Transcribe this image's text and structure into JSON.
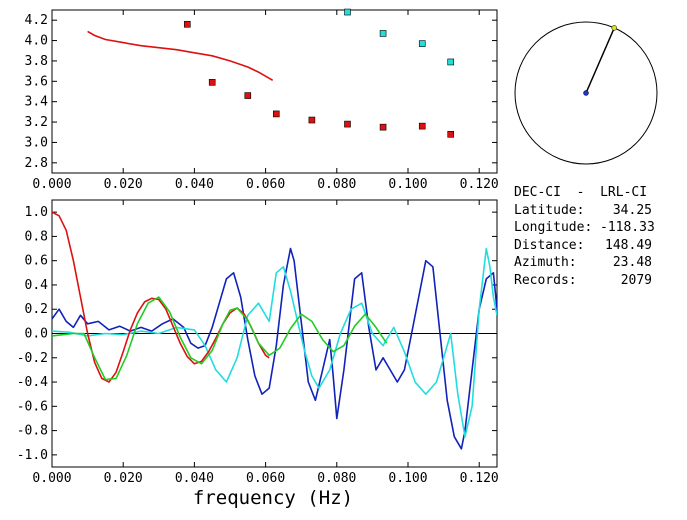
{
  "station": {
    "title": "DEC-CI  -  LRL-CI",
    "rows": [
      {
        "key": "Latitude:",
        "value": "34.25"
      },
      {
        "key": "Longitude:",
        "value": "-118.33"
      },
      {
        "key": "Distance:",
        "value": "148.49"
      },
      {
        "key": "Azimuth:",
        "value": "23.48"
      },
      {
        "key": "Records:",
        "value": "2079"
      }
    ],
    "azimuth_deg": 23.48
  },
  "colors": {
    "red": "#dd1111",
    "cyan": "#22dddd",
    "blue": "#1122bb",
    "green": "#22cc22",
    "axis": "#000000"
  },
  "chart_data": [
    {
      "type": "scatter",
      "xlim": [
        0.0,
        0.125
      ],
      "ylim": [
        2.7,
        4.3
      ],
      "xticks": [
        "0.000",
        "0.020",
        "0.040",
        "0.060",
        "0.080",
        "0.100",
        "0.120"
      ],
      "yticks": [
        "2.8",
        "3.0",
        "3.2",
        "3.4",
        "3.6",
        "3.8",
        "4.0",
        "4.2"
      ],
      "series": [
        {
          "color": "red",
          "kind": "line",
          "x": [
            0.01,
            0.012,
            0.015,
            0.02,
            0.025,
            0.03,
            0.035,
            0.04,
            0.045,
            0.05,
            0.055,
            0.058,
            0.06,
            0.062
          ],
          "y": [
            4.09,
            4.05,
            4.01,
            3.98,
            3.95,
            3.93,
            3.91,
            3.88,
            3.85,
            3.8,
            3.74,
            3.69,
            3.65,
            3.61
          ]
        },
        {
          "color": "red",
          "kind": "points",
          "x": [
            0.038,
            0.045,
            0.055,
            0.063,
            0.073,
            0.083,
            0.093,
            0.104,
            0.112
          ],
          "y": [
            4.16,
            3.59,
            3.46,
            3.28,
            3.22,
            3.18,
            3.15,
            3.16,
            3.08
          ]
        },
        {
          "color": "cyan",
          "kind": "points",
          "x": [
            0.083,
            0.093,
            0.104,
            0.112
          ],
          "y": [
            4.28,
            4.07,
            3.97,
            3.79
          ]
        }
      ]
    },
    {
      "type": "line",
      "xlim": [
        0.0,
        0.125
      ],
      "ylim": [
        -1.1,
        1.1
      ],
      "xlabel": "frequency (Hz)",
      "xticks": [
        "0.000",
        "0.020",
        "0.040",
        "0.060",
        "0.080",
        "0.100",
        "0.120"
      ],
      "yticks": [
        "1.0",
        "0.8",
        "0.6",
        "0.4",
        "0.2",
        "0.0",
        "-0.2",
        "-0.4",
        "-0.6",
        "-0.8",
        "-1.0"
      ],
      "series": [
        {
          "color": "blue",
          "x": [
            0.0,
            0.002,
            0.004,
            0.006,
            0.008,
            0.01,
            0.013,
            0.016,
            0.019,
            0.022,
            0.025,
            0.028,
            0.031,
            0.034,
            0.037,
            0.039,
            0.041,
            0.043,
            0.045,
            0.047,
            0.049,
            0.051,
            0.053,
            0.055,
            0.057,
            0.059,
            0.061,
            0.063,
            0.065,
            0.067,
            0.068,
            0.07,
            0.072,
            0.074,
            0.076,
            0.078,
            0.079,
            0.08,
            0.082,
            0.084,
            0.085,
            0.087,
            0.089,
            0.091,
            0.093,
            0.095,
            0.097,
            0.099,
            0.101,
            0.103,
            0.105,
            0.107,
            0.109,
            0.111,
            0.113,
            0.115,
            0.116,
            0.118,
            0.12,
            0.122,
            0.124,
            0.125
          ],
          "y": [
            0.12,
            0.2,
            0.1,
            0.05,
            0.15,
            0.08,
            0.1,
            0.03,
            0.06,
            0.02,
            0.05,
            0.02,
            0.08,
            0.12,
            0.05,
            -0.08,
            -0.12,
            -0.1,
            0.05,
            0.25,
            0.45,
            0.5,
            0.3,
            -0.05,
            -0.35,
            -0.5,
            -0.45,
            -0.1,
            0.4,
            0.7,
            0.6,
            0.1,
            -0.4,
            -0.55,
            -0.3,
            -0.05,
            -0.35,
            -0.7,
            -0.3,
            0.2,
            0.45,
            0.5,
            0.05,
            -0.3,
            -0.2,
            -0.3,
            -0.4,
            -0.3,
            0.0,
            0.3,
            0.6,
            0.55,
            0.0,
            -0.55,
            -0.85,
            -0.95,
            -0.8,
            -0.3,
            0.2,
            0.45,
            0.5,
            0.2
          ]
        },
        {
          "color": "cyan",
          "x": [
            0.0,
            0.005,
            0.01,
            0.015,
            0.02,
            0.025,
            0.03,
            0.035,
            0.04,
            0.043,
            0.046,
            0.049,
            0.052,
            0.055,
            0.058,
            0.061,
            0.063,
            0.065,
            0.067,
            0.069,
            0.071,
            0.073,
            0.075,
            0.078,
            0.081,
            0.084,
            0.087,
            0.09,
            0.093,
            0.096,
            0.099,
            0.102,
            0.105,
            0.108,
            0.11,
            0.112,
            0.114,
            0.116,
            0.118,
            0.12,
            0.122,
            0.123,
            0.124,
            0.125
          ],
          "y": [
            0.02,
            0.01,
            -0.02,
            0.0,
            -0.01,
            0.02,
            0.0,
            0.05,
            0.03,
            -0.1,
            -0.3,
            -0.4,
            -0.2,
            0.15,
            0.25,
            0.1,
            0.5,
            0.55,
            0.35,
            0.1,
            -0.15,
            -0.35,
            -0.45,
            -0.3,
            0.0,
            0.2,
            0.25,
            0.0,
            -0.1,
            0.05,
            -0.15,
            -0.4,
            -0.5,
            -0.4,
            -0.2,
            0.0,
            -0.5,
            -0.85,
            -0.6,
            0.2,
            0.7,
            0.55,
            0.3,
            0.15
          ]
        },
        {
          "color": "red",
          "x": [
            0.0,
            0.002,
            0.004,
            0.006,
            0.008,
            0.01,
            0.012,
            0.014,
            0.016,
            0.018,
            0.02,
            0.022,
            0.024,
            0.026,
            0.028,
            0.03,
            0.032,
            0.034,
            0.036,
            0.038,
            0.04,
            0.042,
            0.044,
            0.046,
            0.048,
            0.05,
            0.052,
            0.054,
            0.056,
            0.058,
            0.06,
            0.061
          ],
          "y": [
            1.0,
            0.97,
            0.85,
            0.6,
            0.3,
            0.0,
            -0.24,
            -0.37,
            -0.4,
            -0.32,
            -0.15,
            0.03,
            0.17,
            0.26,
            0.29,
            0.28,
            0.2,
            0.06,
            -0.08,
            -0.19,
            -0.25,
            -0.23,
            -0.15,
            -0.04,
            0.08,
            0.17,
            0.21,
            0.16,
            0.05,
            -0.08,
            -0.18,
            -0.2
          ]
        },
        {
          "color": "green",
          "x": [
            0.0,
            0.003,
            0.006,
            0.009,
            0.012,
            0.015,
            0.018,
            0.021,
            0.024,
            0.027,
            0.03,
            0.033,
            0.036,
            0.039,
            0.042,
            0.045,
            0.048,
            0.05,
            0.052,
            0.055,
            0.058,
            0.061,
            0.064,
            0.067,
            0.07,
            0.073,
            0.076,
            0.079,
            0.082,
            0.085,
            0.088,
            0.091,
            0.094
          ],
          "y": [
            -0.02,
            -0.01,
            0.0,
            0.0,
            -0.2,
            -0.38,
            -0.37,
            -0.18,
            0.08,
            0.25,
            0.3,
            0.18,
            -0.03,
            -0.2,
            -0.25,
            -0.14,
            0.08,
            0.19,
            0.21,
            0.11,
            -0.08,
            -0.18,
            -0.12,
            0.04,
            0.16,
            0.1,
            -0.05,
            -0.15,
            -0.1,
            0.06,
            0.16,
            0.05,
            -0.08
          ]
        }
      ]
    }
  ]
}
